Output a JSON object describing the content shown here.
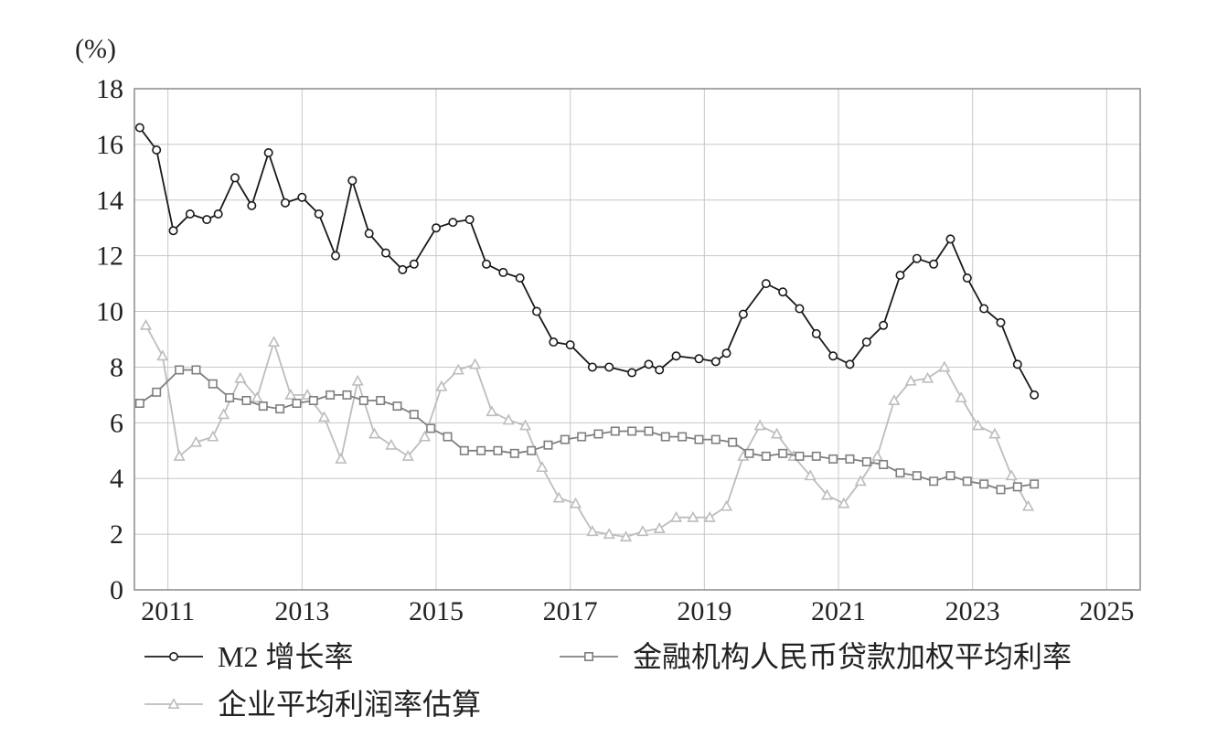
{
  "chart_data": {
    "type": "line",
    "unit_label": "(%)",
    "xlim": [
      2010.5,
      2025.5
    ],
    "ylim": [
      0,
      18
    ],
    "x_ticks": [
      2011,
      2013,
      2015,
      2017,
      2019,
      2021,
      2023,
      2025
    ],
    "y_ticks": [
      0,
      2,
      4,
      6,
      8,
      10,
      12,
      14,
      16,
      18
    ],
    "grid": true,
    "legend_position": "bottom",
    "series": [
      {
        "name": "M2 增长率",
        "color": "#1a1a1a",
        "marker": "circle",
        "x": [
          2010.58,
          2010.83,
          2011.08,
          2011.33,
          2011.58,
          2011.75,
          2012.0,
          2012.25,
          2012.5,
          2012.75,
          2013.0,
          2013.25,
          2013.5,
          2013.75,
          2014.0,
          2014.25,
          2014.5,
          2014.67,
          2015.0,
          2015.25,
          2015.5,
          2015.75,
          2016.0,
          2016.25,
          2016.5,
          2016.75,
          2017.0,
          2017.33,
          2017.58,
          2017.92,
          2018.17,
          2018.33,
          2018.58,
          2018.92,
          2019.17,
          2019.33,
          2019.58,
          2019.92,
          2020.17,
          2020.42,
          2020.67,
          2020.92,
          2021.17,
          2021.42,
          2021.67,
          2021.92,
          2022.17,
          2022.42,
          2022.67,
          2022.92,
          2023.17,
          2023.42,
          2023.67,
          2023.92
        ],
        "y": [
          16.6,
          15.8,
          12.9,
          13.5,
          13.3,
          13.5,
          14.8,
          13.8,
          15.7,
          13.9,
          14.1,
          13.5,
          12.0,
          14.7,
          12.8,
          12.1,
          11.5,
          11.7,
          13.0,
          13.2,
          13.3,
          11.7,
          11.4,
          11.2,
          10.0,
          8.9,
          8.8,
          8.0,
          8.0,
          7.8,
          8.1,
          7.9,
          8.4,
          8.3,
          8.2,
          8.5,
          9.9,
          11.0,
          10.7,
          10.1,
          9.2,
          8.4,
          8.1,
          8.9,
          9.5,
          11.3,
          11.9,
          11.7,
          12.6,
          11.2,
          10.1,
          9.6,
          8.1,
          7.0
        ]
      },
      {
        "name": "金融机构人民币贷款加权平均利率",
        "color": "#7f7f7f",
        "marker": "square",
        "x": [
          2010.58,
          2010.83,
          2011.17,
          2011.42,
          2011.67,
          2011.92,
          2012.17,
          2012.42,
          2012.67,
          2012.92,
          2013.17,
          2013.42,
          2013.67,
          2013.92,
          2014.17,
          2014.42,
          2014.67,
          2014.92,
          2015.17,
          2015.42,
          2015.67,
          2015.92,
          2016.17,
          2016.42,
          2016.67,
          2016.92,
          2017.17,
          2017.42,
          2017.67,
          2017.92,
          2018.17,
          2018.42,
          2018.67,
          2018.92,
          2019.17,
          2019.42,
          2019.67,
          2019.92,
          2020.17,
          2020.42,
          2020.67,
          2020.92,
          2021.17,
          2021.42,
          2021.67,
          2021.92,
          2022.17,
          2022.42,
          2022.67,
          2022.92,
          2023.17,
          2023.42,
          2023.67,
          2023.92
        ],
        "y": [
          6.7,
          7.1,
          7.9,
          7.9,
          7.4,
          6.9,
          6.8,
          6.6,
          6.5,
          6.7,
          6.8,
          7.0,
          7.0,
          6.8,
          6.8,
          6.6,
          6.3,
          5.8,
          5.5,
          5.0,
          5.0,
          5.0,
          4.9,
          5.0,
          5.2,
          5.4,
          5.5,
          5.6,
          5.7,
          5.7,
          5.7,
          5.5,
          5.5,
          5.4,
          5.4,
          5.3,
          4.9,
          4.8,
          4.9,
          4.8,
          4.8,
          4.7,
          4.7,
          4.6,
          4.5,
          4.2,
          4.1,
          3.9,
          4.1,
          3.9,
          3.8,
          3.6,
          3.7,
          3.8
        ]
      },
      {
        "name": "企业平均利润率估算",
        "color": "#bdbdbd",
        "marker": "triangle",
        "x": [
          2010.67,
          2010.92,
          2011.17,
          2011.42,
          2011.67,
          2011.83,
          2012.08,
          2012.33,
          2012.58,
          2012.83,
          2013.08,
          2013.33,
          2013.58,
          2013.83,
          2014.08,
          2014.33,
          2014.58,
          2014.83,
          2015.08,
          2015.33,
          2015.58,
          2015.83,
          2016.08,
          2016.33,
          2016.58,
          2016.83,
          2017.08,
          2017.33,
          2017.58,
          2017.83,
          2018.08,
          2018.33,
          2018.58,
          2018.83,
          2019.08,
          2019.33,
          2019.58,
          2019.83,
          2020.08,
          2020.33,
          2020.58,
          2020.83,
          2021.08,
          2021.33,
          2021.58,
          2021.83,
          2022.08,
          2022.33,
          2022.58,
          2022.83,
          2023.08,
          2023.33,
          2023.58,
          2023.83
        ],
        "y": [
          9.5,
          8.4,
          4.8,
          5.3,
          5.5,
          6.3,
          7.6,
          6.9,
          8.9,
          7.0,
          7.0,
          6.2,
          4.7,
          7.5,
          5.6,
          5.2,
          4.8,
          5.5,
          7.3,
          7.9,
          8.1,
          6.4,
          6.1,
          5.9,
          4.4,
          3.3,
          3.1,
          2.1,
          2.0,
          1.9,
          2.1,
          2.2,
          2.6,
          2.6,
          2.6,
          3.0,
          4.8,
          5.9,
          5.6,
          4.8,
          4.1,
          3.4,
          3.1,
          3.9,
          4.8,
          6.8,
          7.5,
          7.6,
          8.0,
          6.9,
          5.9,
          5.6,
          4.1,
          3.0
        ]
      }
    ]
  }
}
